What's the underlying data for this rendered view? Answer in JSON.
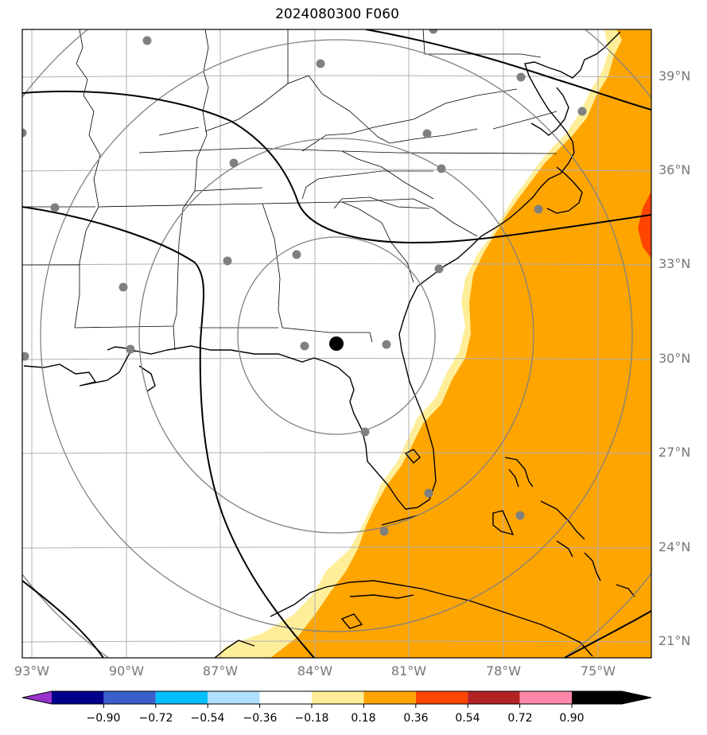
{
  "title": "2024080300 F060",
  "lat_labels": [
    "39°N",
    "36°N",
    "33°N",
    "30°N",
    "27°N",
    "24°N",
    "21°N"
  ],
  "lon_labels": [
    "93°W",
    "90°W",
    "87°W",
    "84°W",
    "81°W",
    "78°W",
    "75°W"
  ],
  "colorbar": {
    "ticks": [
      "−0.90",
      "−0.72",
      "−0.54",
      "−0.36",
      "−0.18",
      "0.18",
      "0.36",
      "0.54",
      "0.72",
      "0.90"
    ],
    "colors": [
      "#9932cc",
      "#00008b",
      "#3a5fcd",
      "#00bfff",
      "#b0e0ff",
      "#ffffff",
      "#ffee99",
      "#ffa500",
      "#ff4500",
      "#b22222",
      "#ff88aa"
    ]
  },
  "colors": {
    "anomaly_low": "#ffee99",
    "anomaly_mid": "#ffa500",
    "anomaly_high": "#ff4500",
    "range_rings": "#808080",
    "stations": "#808080",
    "center": "#000000"
  }
}
